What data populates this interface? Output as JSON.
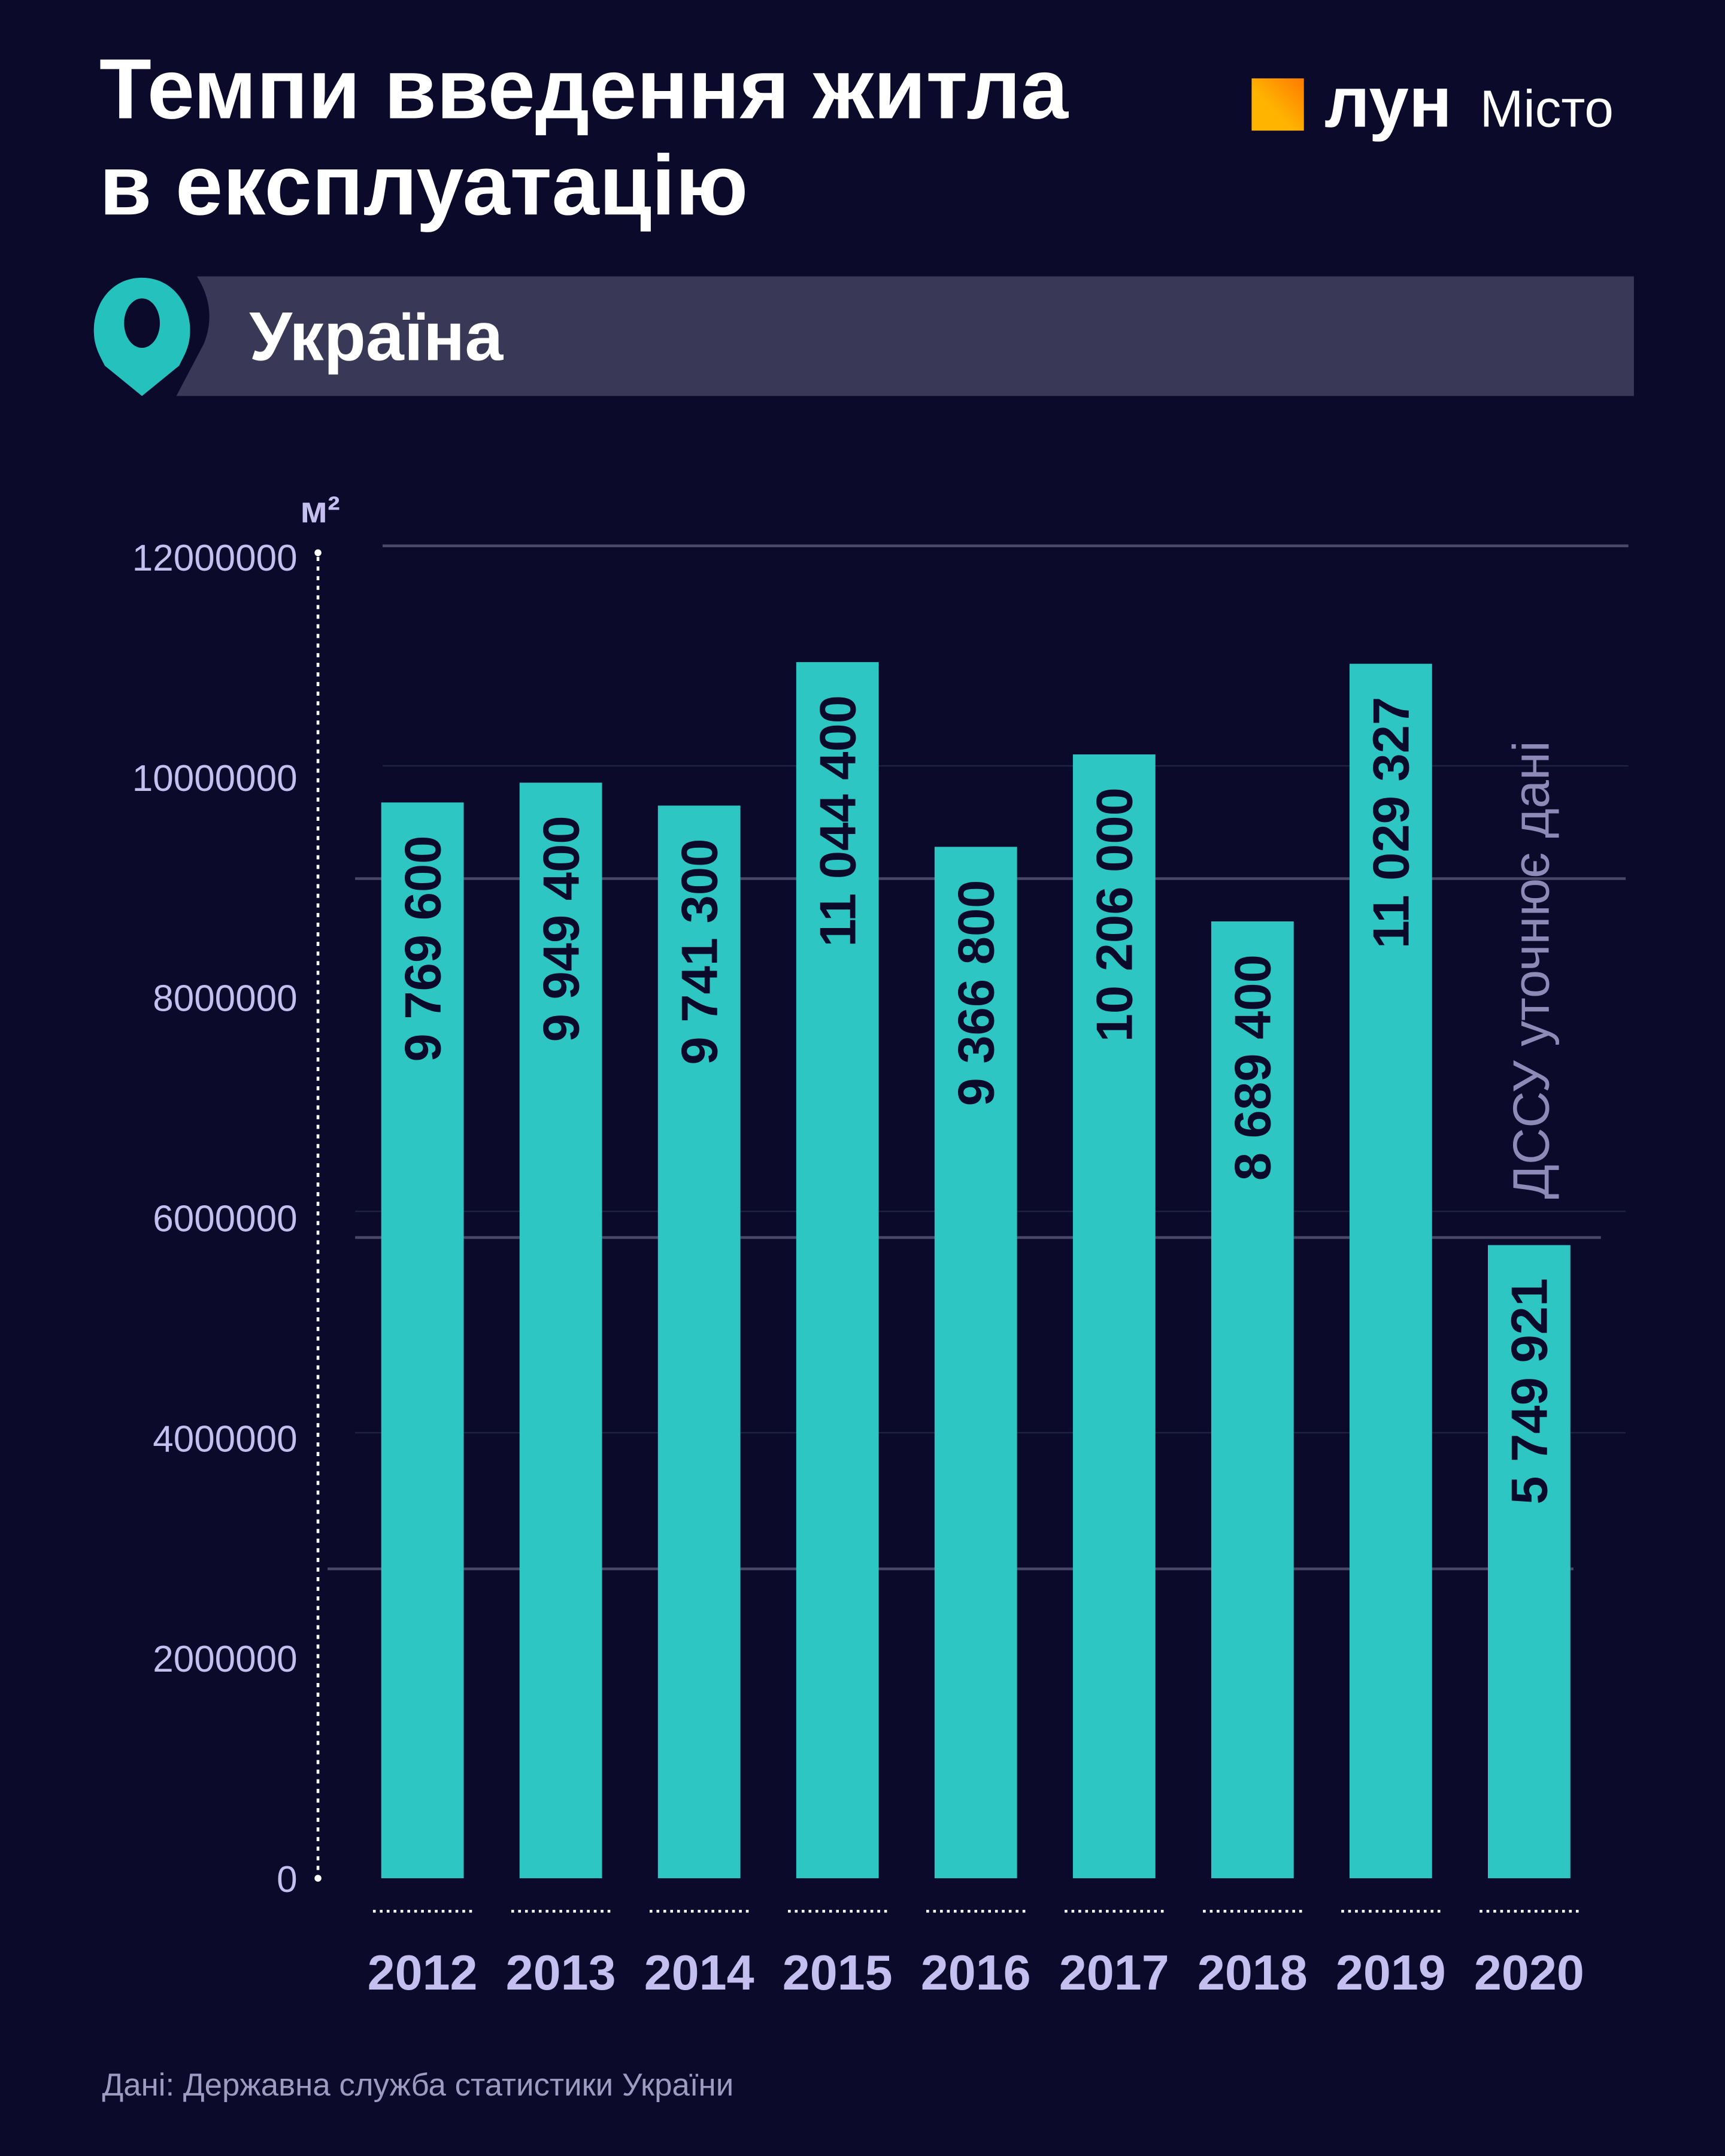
{
  "title_line1": "Темпи введення житла",
  "title_line2": "в експлуатацію",
  "region": "Україна",
  "logo": {
    "brand": "лун",
    "product": "Місто"
  },
  "source": "Дані: Державна служба статистики України",
  "colors": {
    "background": "#0b0a2a",
    "bar": "#2ec6c2",
    "band": "#3a3857",
    "axis_text": "#c5bff0",
    "note": "#8e8ab8"
  },
  "chart_data": {
    "type": "bar",
    "title": "Темпи введення житла в експлуатацію",
    "ylabel": "м²",
    "xlabel": "",
    "ylim": [
      0,
      12000000
    ],
    "yticks": [
      "0",
      "2000000",
      "4000000",
      "6000000",
      "8000000",
      "10000000",
      "12000000"
    ],
    "categories": [
      "2012",
      "2013",
      "2014",
      "2015",
      "2016",
      "2017",
      "2018",
      "2019",
      "2020"
    ],
    "values": [
      9769600,
      9949400,
      9741300,
      11044400,
      9366800,
      10206000,
      8689400,
      11029327,
      5749921
    ],
    "value_labels": [
      "9 769 600",
      "9 949 400",
      "9 741 300",
      "11 044 400",
      "9 366 800",
      "10 206 000",
      "8 689 400",
      "11 029 327",
      "5 749 921"
    ],
    "annotation": "ДССУ уточнює дані"
  }
}
